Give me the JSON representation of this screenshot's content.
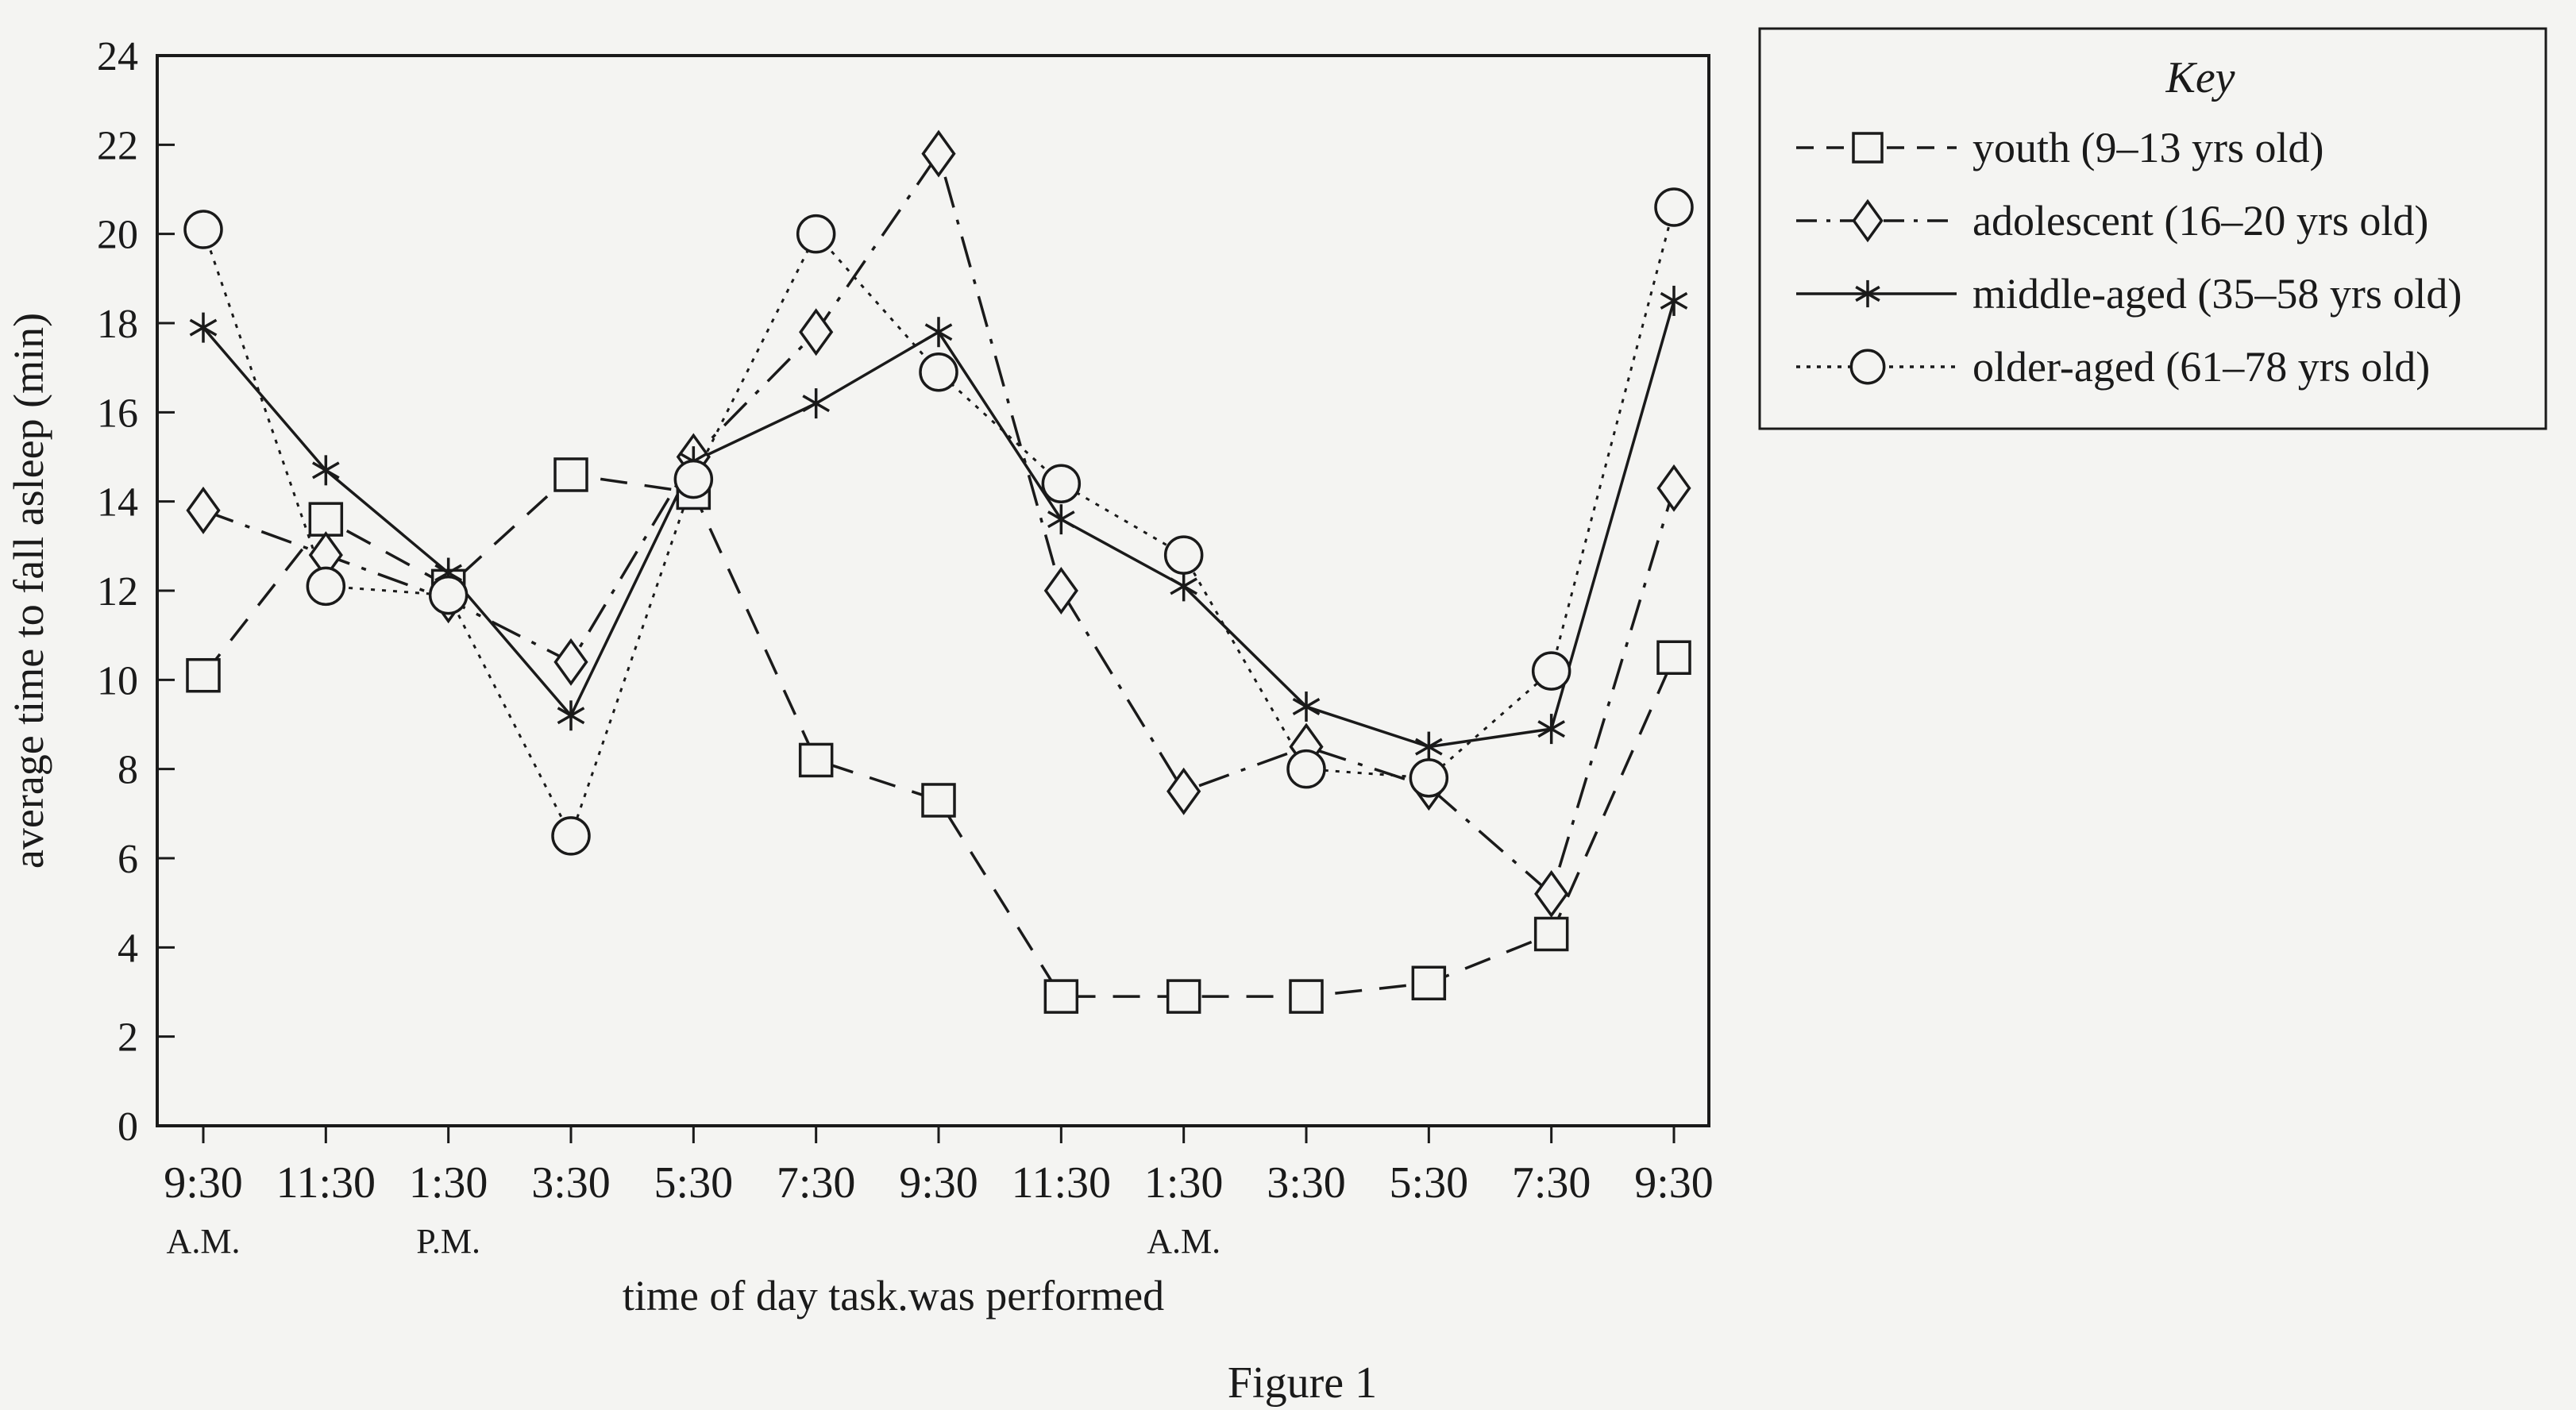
{
  "chart_data": {
    "type": "line",
    "ylabel": "average time to fall asleep (min)",
    "xlabel": "time of day task.was performed",
    "caption": "Figure 1",
    "ylim": [
      0,
      24
    ],
    "y_ticks": [
      "0",
      "2",
      "4",
      "6",
      "8",
      "10",
      "12",
      "14",
      "16",
      "18",
      "20",
      "22",
      "24"
    ],
    "x": [
      "9:30",
      "11:30",
      "1:30",
      "3:30",
      "5:30",
      "7:30",
      "9:30",
      "11:30",
      "1:30",
      "3:30",
      "5:30",
      "7:30",
      "9:30"
    ],
    "x_sublabels": [
      {
        "index": 0,
        "text": "A.M."
      },
      {
        "index": 2,
        "text": "P.M."
      },
      {
        "index": 8,
        "text": "A.M."
      }
    ],
    "legend": {
      "title": "Key",
      "position": "top-right"
    },
    "series": [
      {
        "name": "youth (9–13 yrs old)",
        "marker": "square",
        "dash": "dashed",
        "color": "#1a1a1a",
        "values": [
          10.1,
          13.6,
          12.1,
          14.6,
          14.2,
          8.2,
          7.3,
          2.9,
          2.9,
          2.9,
          3.2,
          4.3,
          10.5
        ]
      },
      {
        "name": "adolescent (16–20 yrs old)",
        "marker": "diamond",
        "dash": "dashdot",
        "color": "#1a1a1a",
        "values": [
          13.8,
          12.8,
          11.8,
          10.4,
          15.0,
          17.8,
          21.8,
          12.0,
          7.5,
          8.5,
          7.6,
          5.2,
          14.3
        ]
      },
      {
        "name": "middle-aged (35–58 yrs old)",
        "marker": "asterisk",
        "dash": "solid",
        "color": "#1a1a1a",
        "values": [
          17.9,
          14.7,
          12.4,
          9.2,
          14.9,
          16.2,
          17.8,
          13.6,
          12.1,
          9.4,
          8.5,
          8.9,
          18.5
        ]
      },
      {
        "name": "older-aged (61–78 yrs old)",
        "marker": "circle",
        "dash": "dotted",
        "color": "#1a1a1a",
        "values": [
          20.1,
          12.1,
          11.9,
          6.5,
          14.5,
          20.0,
          16.9,
          14.4,
          12.8,
          8.0,
          7.8,
          10.2,
          20.6
        ]
      }
    ]
  }
}
